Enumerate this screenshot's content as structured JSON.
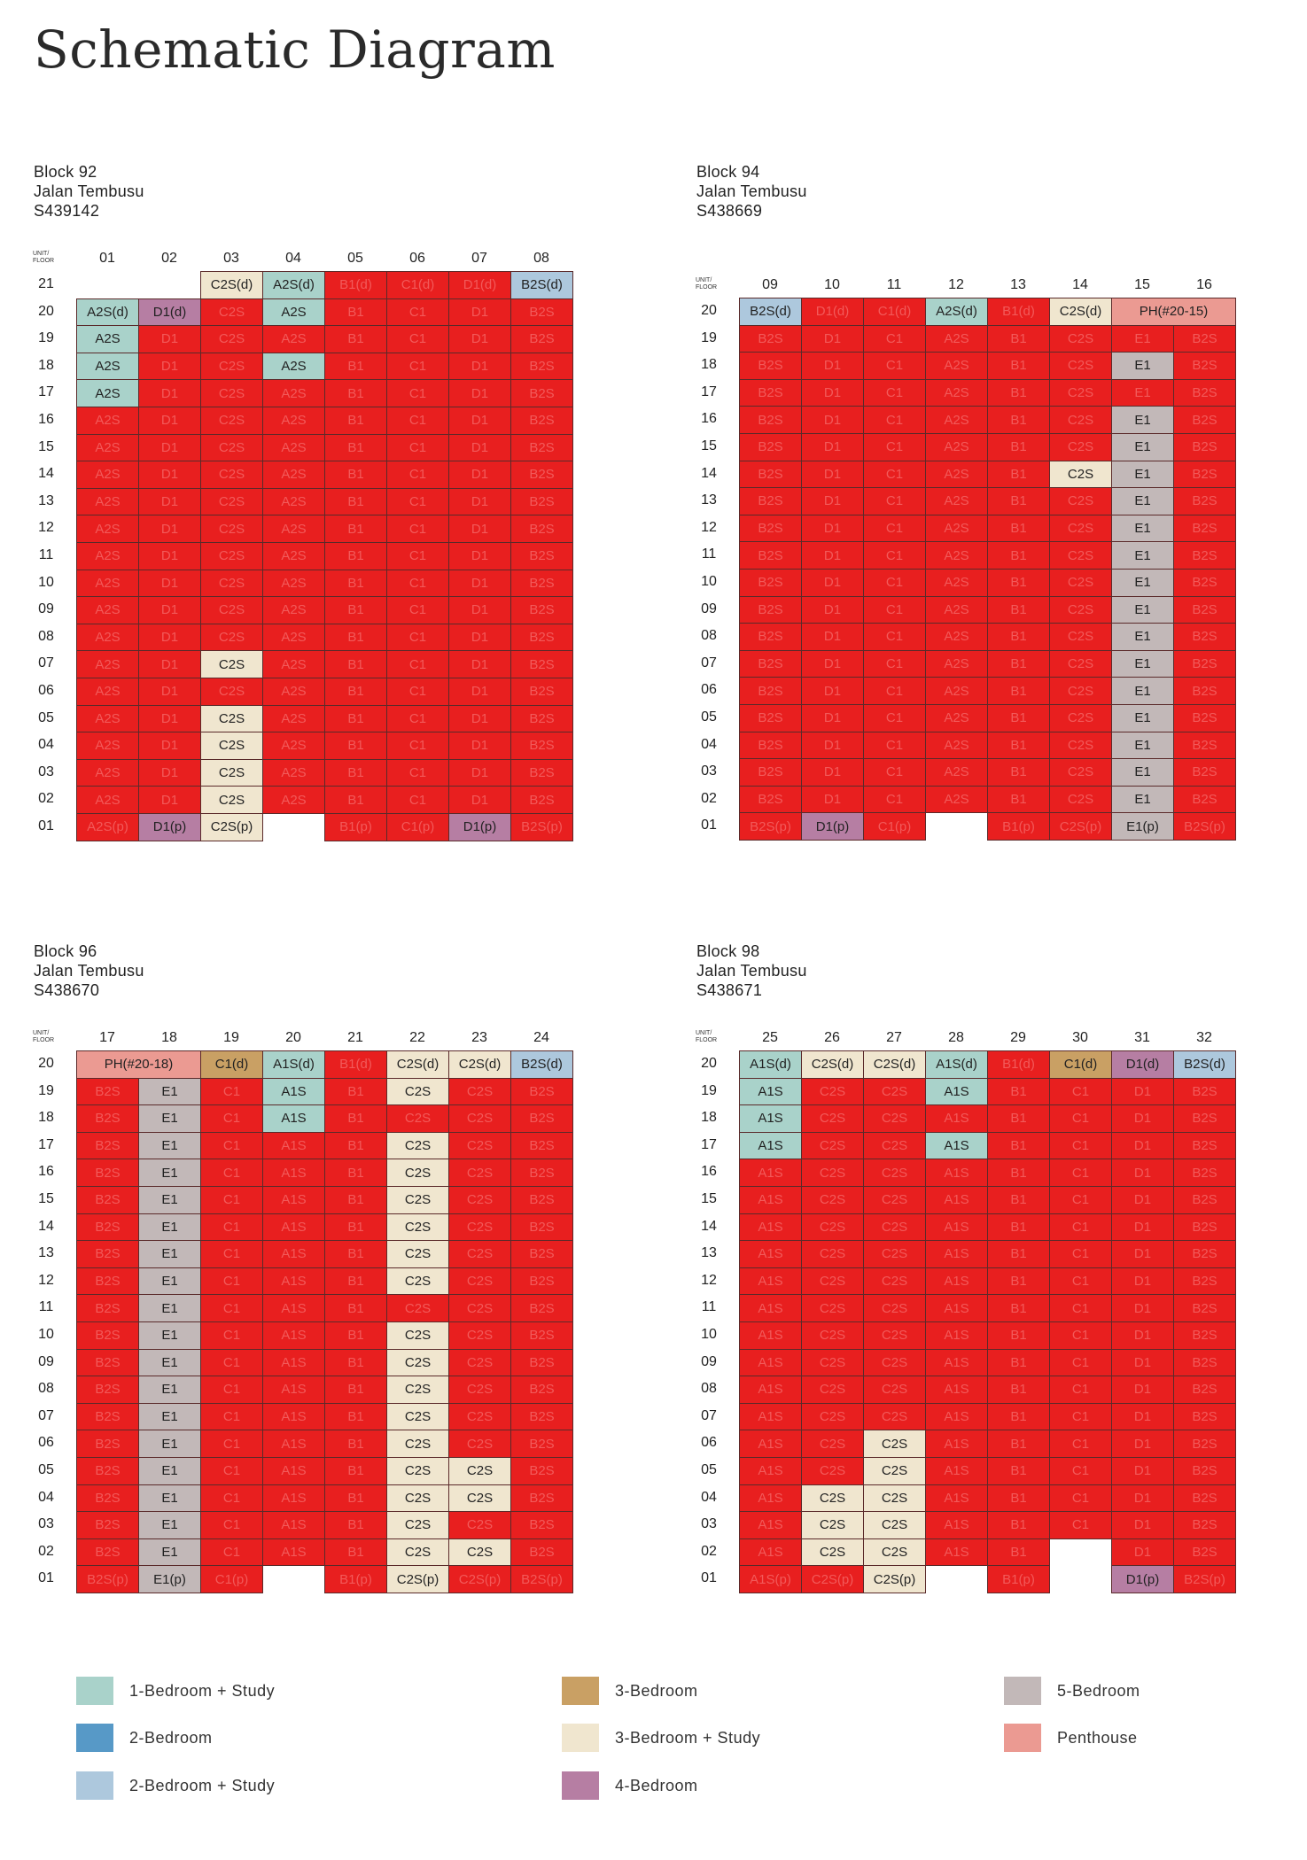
{
  "page_title": "Schematic Diagram",
  "corner_label": [
    "UNIT/",
    "FLOOR"
  ],
  "colors": {
    "sold": "#e81f1f",
    "A": "#a9d2ca",
    "C2S": "#f0e6cf",
    "E": "#c2b8b8",
    "B2S": "#adc8dd",
    "D": "#b67ea3",
    "C1": "#c9a064",
    "PH": "#eb9a92"
  },
  "legend": [
    {
      "label": "1-Bedroom + Study",
      "color": "#a9d2ca"
    },
    {
      "label": "2-Bedroom",
      "color": "#5799c7"
    },
    {
      "label": "2-Bedroom + Study",
      "color": "#adc8dd"
    },
    {
      "label": "3-Bedroom",
      "color": "#c9a064"
    },
    {
      "label": "3-Bedroom + Study",
      "color": "#f0e6cf"
    },
    {
      "label": "4-Bedroom",
      "color": "#b67ea3"
    },
    {
      "label": "5-Bedroom",
      "color": "#c2b8b8"
    },
    {
      "label": "Penthouse",
      "color": "#eb9a92"
    }
  ],
  "blocks": [
    {
      "address": [
        "Block 92",
        "Jalan Tembusu",
        "S439142"
      ],
      "units": [
        "01",
        "02",
        "03",
        "04",
        "05",
        "06",
        "07",
        "08"
      ],
      "floors": [
        "21",
        "20",
        "19",
        "18",
        "17",
        "16",
        "15",
        "14",
        "13",
        "12",
        "11",
        "10",
        "09",
        "08",
        "07",
        "06",
        "05",
        "04",
        "03",
        "02",
        "01"
      ],
      "rows": [
        [
          null,
          null,
          "C2S(d)|a",
          "A2S(d)|a",
          "B1(d)",
          "C1(d)",
          "D1(d)",
          "B2S(d)|a"
        ],
        [
          "A2S(d)|a",
          "D1(d)|a",
          "C2S",
          "A2S|a",
          "B1",
          "C1",
          "D1",
          "B2S"
        ],
        [
          "A2S|a",
          "D1",
          "C2S",
          "A2S",
          "B1",
          "C1",
          "D1",
          "B2S"
        ],
        [
          "A2S|a",
          "D1",
          "C2S",
          "A2S|a",
          "B1",
          "C1",
          "D1",
          "B2S"
        ],
        [
          "A2S|a",
          "D1",
          "C2S",
          "A2S",
          "B1",
          "C1",
          "D1",
          "B2S"
        ],
        [
          "A2S",
          "D1",
          "C2S",
          "A2S",
          "B1",
          "C1",
          "D1",
          "B2S"
        ],
        [
          "A2S",
          "D1",
          "C2S",
          "A2S",
          "B1",
          "C1",
          "D1",
          "B2S"
        ],
        [
          "A2S",
          "D1",
          "C2S",
          "A2S",
          "B1",
          "C1",
          "D1",
          "B2S"
        ],
        [
          "A2S",
          "D1",
          "C2S",
          "A2S",
          "B1",
          "C1",
          "D1",
          "B2S"
        ],
        [
          "A2S",
          "D1",
          "C2S",
          "A2S",
          "B1",
          "C1",
          "D1",
          "B2S"
        ],
        [
          "A2S",
          "D1",
          "C2S",
          "A2S",
          "B1",
          "C1",
          "D1",
          "B2S"
        ],
        [
          "A2S",
          "D1",
          "C2S",
          "A2S",
          "B1",
          "C1",
          "D1",
          "B2S"
        ],
        [
          "A2S",
          "D1",
          "C2S",
          "A2S",
          "B1",
          "C1",
          "D1",
          "B2S"
        ],
        [
          "A2S",
          "D1",
          "C2S",
          "A2S",
          "B1",
          "C1",
          "D1",
          "B2S"
        ],
        [
          "A2S",
          "D1",
          "C2S|a",
          "A2S",
          "B1",
          "C1",
          "D1",
          "B2S"
        ],
        [
          "A2S",
          "D1",
          "C2S",
          "A2S",
          "B1",
          "C1",
          "D1",
          "B2S"
        ],
        [
          "A2S",
          "D1",
          "C2S|a",
          "A2S",
          "B1",
          "C1",
          "D1",
          "B2S"
        ],
        [
          "A2S",
          "D1",
          "C2S|a",
          "A2S",
          "B1",
          "C1",
          "D1",
          "B2S"
        ],
        [
          "A2S",
          "D1",
          "C2S|a",
          "A2S",
          "B1",
          "C1",
          "D1",
          "B2S"
        ],
        [
          "A2S",
          "D1",
          "C2S|a",
          "A2S",
          "B1",
          "C1",
          "D1",
          "B2S"
        ],
        [
          "A2S(p)",
          "D1(p)|a",
          "C2S(p)|a",
          null,
          "B1(p)",
          "C1(p)",
          "D1(p)|a",
          "B2S(p)"
        ]
      ]
    },
    {
      "address": [
        "Block 94",
        "Jalan Tembusu",
        "S438669"
      ],
      "units": [
        "09",
        "10",
        "11",
        "12",
        "13",
        "14",
        "15",
        "16"
      ],
      "floors": [
        "20",
        "19",
        "18",
        "17",
        "16",
        "15",
        "14",
        "13",
        "12",
        "11",
        "10",
        "09",
        "08",
        "07",
        "06",
        "05",
        "04",
        "03",
        "02",
        "01"
      ],
      "rows": [
        [
          "B2S(d)|a",
          "D1(d)",
          "C1(d)",
          "A2S(d)|a",
          "B1(d)",
          "C2S(d)|a",
          "PH(#20-15)|a|2",
          null
        ],
        [
          "B2S",
          "D1",
          "C1",
          "A2S",
          "B1",
          "C2S",
          "E1",
          "B2S"
        ],
        [
          "B2S",
          "D1",
          "C1",
          "A2S",
          "B1",
          "C2S",
          "E1|a",
          "B2S"
        ],
        [
          "B2S",
          "D1",
          "C1",
          "A2S",
          "B1",
          "C2S",
          "E1",
          "B2S"
        ],
        [
          "B2S",
          "D1",
          "C1",
          "A2S",
          "B1",
          "C2S",
          "E1|a",
          "B2S"
        ],
        [
          "B2S",
          "D1",
          "C1",
          "A2S",
          "B1",
          "C2S",
          "E1|a",
          "B2S"
        ],
        [
          "B2S",
          "D1",
          "C1",
          "A2S",
          "B1",
          "C2S|a",
          "E1|a",
          "B2S"
        ],
        [
          "B2S",
          "D1",
          "C1",
          "A2S",
          "B1",
          "C2S",
          "E1|a",
          "B2S"
        ],
        [
          "B2S",
          "D1",
          "C1",
          "A2S",
          "B1",
          "C2S",
          "E1|a",
          "B2S"
        ],
        [
          "B2S",
          "D1",
          "C1",
          "A2S",
          "B1",
          "C2S",
          "E1|a",
          "B2S"
        ],
        [
          "B2S",
          "D1",
          "C1",
          "A2S",
          "B1",
          "C2S",
          "E1|a",
          "B2S"
        ],
        [
          "B2S",
          "D1",
          "C1",
          "A2S",
          "B1",
          "C2S",
          "E1|a",
          "B2S"
        ],
        [
          "B2S",
          "D1",
          "C1",
          "A2S",
          "B1",
          "C2S",
          "E1|a",
          "B2S"
        ],
        [
          "B2S",
          "D1",
          "C1",
          "A2S",
          "B1",
          "C2S",
          "E1|a",
          "B2S"
        ],
        [
          "B2S",
          "D1",
          "C1",
          "A2S",
          "B1",
          "C2S",
          "E1|a",
          "B2S"
        ],
        [
          "B2S",
          "D1",
          "C1",
          "A2S",
          "B1",
          "C2S",
          "E1|a",
          "B2S"
        ],
        [
          "B2S",
          "D1",
          "C1",
          "A2S",
          "B1",
          "C2S",
          "E1|a",
          "B2S"
        ],
        [
          "B2S",
          "D1",
          "C1",
          "A2S",
          "B1",
          "C2S",
          "E1|a",
          "B2S"
        ],
        [
          "B2S",
          "D1",
          "C1",
          "A2S",
          "B1",
          "C2S",
          "E1|a",
          "B2S"
        ],
        [
          "B2S(p)",
          "D1(p)|a",
          "C1(p)",
          null,
          "B1(p)",
          "C2S(p)",
          "E1(p)|a",
          "B2S(p)"
        ]
      ]
    },
    {
      "address": [
        "Block 96",
        "Jalan Tembusu",
        "S438670"
      ],
      "units": [
        "17",
        "18",
        "19",
        "20",
        "21",
        "22",
        "23",
        "24"
      ],
      "floors": [
        "20",
        "19",
        "18",
        "17",
        "16",
        "15",
        "14",
        "13",
        "12",
        "11",
        "10",
        "09",
        "08",
        "07",
        "06",
        "05",
        "04",
        "03",
        "02",
        "01"
      ],
      "rows": [
        [
          "PH(#20-18)|a|2",
          null,
          "C1(d)|a",
          "A1S(d)|a",
          "B1(d)",
          "C2S(d)|a",
          "C2S(d)|a",
          "B2S(d)|a"
        ],
        [
          "B2S",
          "E1|a",
          "C1",
          "A1S|a",
          "B1",
          "C2S|a",
          "C2S",
          "B2S"
        ],
        [
          "B2S",
          "E1|a",
          "C1",
          "A1S|a",
          "B1",
          "C2S",
          "C2S",
          "B2S"
        ],
        [
          "B2S",
          "E1|a",
          "C1",
          "A1S",
          "B1",
          "C2S|a",
          "C2S",
          "B2S"
        ],
        [
          "B2S",
          "E1|a",
          "C1",
          "A1S",
          "B1",
          "C2S|a",
          "C2S",
          "B2S"
        ],
        [
          "B2S",
          "E1|a",
          "C1",
          "A1S",
          "B1",
          "C2S|a",
          "C2S",
          "B2S"
        ],
        [
          "B2S",
          "E1|a",
          "C1",
          "A1S",
          "B1",
          "C2S|a",
          "C2S",
          "B2S"
        ],
        [
          "B2S",
          "E1|a",
          "C1",
          "A1S",
          "B1",
          "C2S|a",
          "C2S",
          "B2S"
        ],
        [
          "B2S",
          "E1|a",
          "C1",
          "A1S",
          "B1",
          "C2S|a",
          "C2S",
          "B2S"
        ],
        [
          "B2S",
          "E1|a",
          "C1",
          "A1S",
          "B1",
          "C2S",
          "C2S",
          "B2S"
        ],
        [
          "B2S",
          "E1|a",
          "C1",
          "A1S",
          "B1",
          "C2S|a",
          "C2S",
          "B2S"
        ],
        [
          "B2S",
          "E1|a",
          "C1",
          "A1S",
          "B1",
          "C2S|a",
          "C2S",
          "B2S"
        ],
        [
          "B2S",
          "E1|a",
          "C1",
          "A1S",
          "B1",
          "C2S|a",
          "C2S",
          "B2S"
        ],
        [
          "B2S",
          "E1|a",
          "C1",
          "A1S",
          "B1",
          "C2S|a",
          "C2S",
          "B2S"
        ],
        [
          "B2S",
          "E1|a",
          "C1",
          "A1S",
          "B1",
          "C2S|a",
          "C2S",
          "B2S"
        ],
        [
          "B2S",
          "E1|a",
          "C1",
          "A1S",
          "B1",
          "C2S|a",
          "C2S|a",
          "B2S"
        ],
        [
          "B2S",
          "E1|a",
          "C1",
          "A1S",
          "B1",
          "C2S|a",
          "C2S|a",
          "B2S"
        ],
        [
          "B2S",
          "E1|a",
          "C1",
          "A1S",
          "B1",
          "C2S|a",
          "C2S",
          "B2S"
        ],
        [
          "B2S",
          "E1|a",
          "C1",
          "A1S",
          "B1",
          "C2S|a",
          "C2S|a",
          "B2S"
        ],
        [
          "B2S(p)",
          "E1(p)|a",
          "C1(p)",
          null,
          "B1(p)",
          "C2S(p)|a",
          "C2S(p)",
          "B2S(p)"
        ]
      ]
    },
    {
      "address": [
        "Block 98",
        "Jalan Tembusu",
        "S438671"
      ],
      "units": [
        "25",
        "26",
        "27",
        "28",
        "29",
        "30",
        "31",
        "32"
      ],
      "floors": [
        "20",
        "19",
        "18",
        "17",
        "16",
        "15",
        "14",
        "13",
        "12",
        "11",
        "10",
        "09",
        "08",
        "07",
        "06",
        "05",
        "04",
        "03",
        "02",
        "01"
      ],
      "rows": [
        [
          "A1S(d)|a",
          "C2S(d)|a",
          "C2S(d)|a",
          "A1S(d)|a",
          "B1(d)",
          "C1(d)|a",
          "D1(d)|a",
          "B2S(d)|a"
        ],
        [
          "A1S|a",
          "C2S",
          "C2S",
          "A1S|a",
          "B1",
          "C1",
          "D1",
          "B2S"
        ],
        [
          "A1S|a",
          "C2S",
          "C2S",
          "A1S",
          "B1",
          "C1",
          "D1",
          "B2S"
        ],
        [
          "A1S|a",
          "C2S",
          "C2S",
          "A1S|a",
          "B1",
          "C1",
          "D1",
          "B2S"
        ],
        [
          "A1S",
          "C2S",
          "C2S",
          "A1S",
          "B1",
          "C1",
          "D1",
          "B2S"
        ],
        [
          "A1S",
          "C2S",
          "C2S",
          "A1S",
          "B1",
          "C1",
          "D1",
          "B2S"
        ],
        [
          "A1S",
          "C2S",
          "C2S",
          "A1S",
          "B1",
          "C1",
          "D1",
          "B2S"
        ],
        [
          "A1S",
          "C2S",
          "C2S",
          "A1S",
          "B1",
          "C1",
          "D1",
          "B2S"
        ],
        [
          "A1S",
          "C2S",
          "C2S",
          "A1S",
          "B1",
          "C1",
          "D1",
          "B2S"
        ],
        [
          "A1S",
          "C2S",
          "C2S",
          "A1S",
          "B1",
          "C1",
          "D1",
          "B2S"
        ],
        [
          "A1S",
          "C2S",
          "C2S",
          "A1S",
          "B1",
          "C1",
          "D1",
          "B2S"
        ],
        [
          "A1S",
          "C2S",
          "C2S",
          "A1S",
          "B1",
          "C1",
          "D1",
          "B2S"
        ],
        [
          "A1S",
          "C2S",
          "C2S",
          "A1S",
          "B1",
          "C1",
          "D1",
          "B2S"
        ],
        [
          "A1S",
          "C2S",
          "C2S",
          "A1S",
          "B1",
          "C1",
          "D1",
          "B2S"
        ],
        [
          "A1S",
          "C2S",
          "C2S|a",
          "A1S",
          "B1",
          "C1",
          "D1",
          "B2S"
        ],
        [
          "A1S",
          "C2S",
          "C2S|a",
          "A1S",
          "B1",
          "C1",
          "D1",
          "B2S"
        ],
        [
          "A1S",
          "C2S|a",
          "C2S|a",
          "A1S",
          "B1",
          "C1",
          "D1",
          "B2S"
        ],
        [
          "A1S",
          "C2S|a",
          "C2S|a",
          "A1S",
          "B1",
          "C1",
          "D1",
          "B2S"
        ],
        [
          "A1S",
          "C2S|a",
          "C2S|a",
          "A1S",
          "B1",
          null,
          "D1",
          "B2S"
        ],
        [
          "A1S(p)",
          "C2S(p)",
          "C2S(p)|a",
          null,
          "B1(p)",
          null,
          "D1(p)|a",
          "B2S(p)"
        ]
      ]
    }
  ]
}
